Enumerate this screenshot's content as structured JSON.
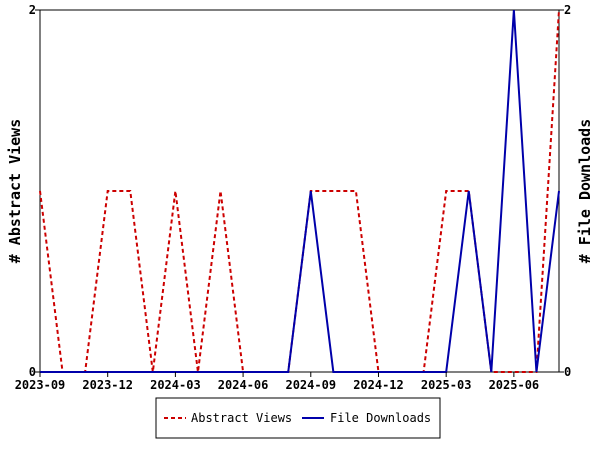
{
  "chart_data": {
    "type": "line",
    "x": [
      "2023-09",
      "2023-10",
      "2023-11",
      "2023-12",
      "2024-01",
      "2024-02",
      "2024-03",
      "2024-04",
      "2024-05",
      "2024-06",
      "2024-07",
      "2024-08",
      "2024-09",
      "2024-10",
      "2024-11",
      "2024-12",
      "2025-01",
      "2025-02",
      "2025-03",
      "2025-04",
      "2025-05",
      "2025-06",
      "2025-07",
      "2025-08"
    ],
    "xticks": [
      "2023-09",
      "2023-12",
      "2024-03",
      "2024-06",
      "2024-09",
      "2024-12",
      "2025-03",
      "2025-06"
    ],
    "series": [
      {
        "name": "Abstract Views",
        "axis": "left",
        "color": "#cc0000",
        "style": "dashed",
        "values": [
          1,
          0,
          0,
          1,
          1,
          0,
          1,
          0,
          1,
          0,
          0,
          0,
          1,
          1,
          1,
          0,
          0,
          0,
          1,
          1,
          0,
          0,
          0,
          2
        ]
      },
      {
        "name": "File Downloads",
        "axis": "right",
        "color": "#0000aa",
        "style": "solid",
        "values": [
          0,
          0,
          0,
          0,
          0,
          0,
          0,
          0,
          0,
          0,
          0,
          0,
          1,
          0,
          0,
          0,
          0,
          0,
          0,
          1,
          0,
          2,
          0,
          1
        ]
      }
    ],
    "ylabel": "# Abstract Views",
    "y2label": "# File Downloads",
    "ylim": [
      0,
      2
    ],
    "y2lim": [
      0,
      2
    ],
    "yticks": [
      "0",
      "2"
    ],
    "y2ticks": [
      "0",
      "2"
    ],
    "grid": false,
    "legend_position": "bottom"
  }
}
